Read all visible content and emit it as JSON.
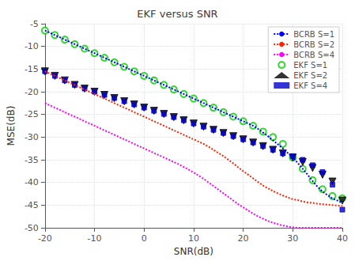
{
  "chart_data": {
    "type": "line",
    "title": "EKF versus SNR",
    "xlabel": "SNR(dB)",
    "ylabel": "MSE(dB)",
    "xlim": [
      -20,
      40
    ],
    "ylim": [
      -50,
      -5
    ],
    "xticks": [
      -20,
      -10,
      0,
      10,
      20,
      30,
      40
    ],
    "yticks": [
      -50,
      -45,
      -40,
      -35,
      -30,
      -25,
      -20,
      -15,
      -10,
      -5
    ],
    "grid": true,
    "legend": "upper right",
    "series": [
      {
        "name": "BCRB S=1",
        "type": "line",
        "line_style": "dotted",
        "color": "#0000ff",
        "x": [
          -20,
          -19,
          -18,
          -17,
          -16,
          -15,
          -14,
          -13,
          -12,
          -11,
          -10,
          -9,
          -8,
          -7,
          -6,
          -5,
          -4,
          -3,
          -2,
          -1,
          0,
          1,
          2,
          3,
          4,
          5,
          6,
          7,
          8,
          9,
          10,
          11,
          12,
          13,
          14,
          15,
          16,
          17,
          18,
          19,
          20,
          21,
          22,
          23,
          24,
          25,
          26,
          27,
          28,
          29,
          30,
          31,
          32,
          33,
          34,
          35,
          36,
          37,
          38,
          39,
          40
        ],
        "values": [
          -6.5,
          -7.0,
          -7.5,
          -8.0,
          -8.5,
          -9.0,
          -9.5,
          -10.0,
          -10.5,
          -11.0,
          -11.5,
          -12.0,
          -12.5,
          -13.0,
          -13.5,
          -14.0,
          -14.5,
          -15.0,
          -15.5,
          -16.0,
          -16.5,
          -17.0,
          -17.5,
          -18.0,
          -18.5,
          -19.0,
          -19.5,
          -20.0,
          -20.5,
          -21.0,
          -21.5,
          -22.0,
          -22.5,
          -23.0,
          -23.5,
          -24.0,
          -24.5,
          -25.0,
          -25.5,
          -26.0,
          -26.5,
          -27.0,
          -27.5,
          -28.2,
          -29.0,
          -29.8,
          -30.7,
          -31.6,
          -32.5,
          -33.5,
          -34.5,
          -35.7,
          -37.0,
          -38.3,
          -39.7,
          -41.0,
          -42.0,
          -42.8,
          -43.5,
          -44.0,
          -44.5
        ]
      },
      {
        "name": "BCRB S=2",
        "type": "line",
        "line_style": "dotted",
        "color": "#ff2200",
        "x": [
          -20,
          -19,
          -18,
          -17,
          -16,
          -15,
          -14,
          -13,
          -12,
          -11,
          -10,
          -9,
          -8,
          -7,
          -6,
          -5,
          -4,
          -3,
          -2,
          -1,
          0,
          1,
          2,
          3,
          4,
          5,
          6,
          7,
          8,
          9,
          10,
          11,
          12,
          13,
          14,
          15,
          16,
          17,
          18,
          19,
          20,
          21,
          22,
          23,
          24,
          25,
          26,
          27,
          28,
          29,
          30,
          31,
          32,
          33,
          34,
          35,
          36,
          37,
          38,
          39,
          40
        ],
        "values": [
          -15.5,
          -16.0,
          -16.5,
          -17.0,
          -17.5,
          -18.0,
          -18.5,
          -19.0,
          -19.5,
          -20.0,
          -20.5,
          -21.0,
          -21.5,
          -22.0,
          -22.5,
          -23.0,
          -23.5,
          -24.0,
          -24.5,
          -25.0,
          -25.5,
          -26.0,
          -26.5,
          -27.0,
          -27.5,
          -28.0,
          -28.5,
          -29.0,
          -29.5,
          -30.0,
          -30.5,
          -31.0,
          -31.5,
          -32.1,
          -32.8,
          -33.5,
          -34.2,
          -35.0,
          -35.8,
          -36.7,
          -37.5,
          -38.3,
          -39.1,
          -39.9,
          -40.7,
          -41.3,
          -41.9,
          -42.4,
          -42.9,
          -43.3,
          -43.7,
          -43.9,
          -44.2,
          -44.4,
          -44.5,
          -44.7,
          -44.8,
          -44.9,
          -45.0,
          -45.1,
          -45.2
        ]
      },
      {
        "name": "BCRB S=4",
        "type": "line",
        "line_style": "dotted",
        "color": "#ff00ff",
        "x": [
          -20,
          -19,
          -18,
          -17,
          -16,
          -15,
          -14,
          -13,
          -12,
          -11,
          -10,
          -9,
          -8,
          -7,
          -6,
          -5,
          -4,
          -3,
          -2,
          -1,
          0,
          1,
          2,
          3,
          4,
          5,
          6,
          7,
          8,
          9,
          10,
          11,
          12,
          13,
          14,
          15,
          16,
          17,
          18,
          19,
          20,
          21,
          22,
          23,
          24,
          25,
          26,
          27,
          28,
          29,
          30,
          31,
          32,
          33,
          34,
          35,
          36,
          37,
          38,
          39,
          40
        ],
        "values": [
          -22.5,
          -23.0,
          -23.5,
          -24.0,
          -24.5,
          -25.0,
          -25.5,
          -26.0,
          -26.5,
          -27.0,
          -27.5,
          -28.0,
          -28.5,
          -29.0,
          -29.5,
          -30.0,
          -30.5,
          -31.0,
          -31.5,
          -32.0,
          -32.5,
          -33.0,
          -33.5,
          -34.0,
          -34.5,
          -35.0,
          -35.5,
          -36.0,
          -36.6,
          -37.2,
          -37.8,
          -38.5,
          -39.2,
          -40.0,
          -40.8,
          -41.6,
          -42.4,
          -43.2,
          -44.0,
          -44.8,
          -45.5,
          -46.2,
          -46.9,
          -47.5,
          -48.0,
          -48.5,
          -48.9,
          -49.2,
          -49.5,
          -49.7,
          -49.9,
          -50.0,
          -50.0,
          -50.0,
          -50.0,
          -50.0,
          -50.0,
          -50.0,
          -50.0,
          -50.0,
          -50.0
        ]
      },
      {
        "name": "EKF S=1",
        "type": "scatter",
        "marker": "open_circle",
        "color": "#00cc00",
        "x": [
          -20,
          -18,
          -16,
          -14,
          -12,
          -10,
          -8,
          -6,
          -4,
          -2,
          0,
          2,
          4,
          6,
          8,
          10,
          12,
          14,
          16,
          18,
          20,
          22,
          24,
          26,
          28,
          30,
          32,
          34,
          36,
          38,
          40
        ],
        "values": [
          -6.5,
          -7.5,
          -8.5,
          -9.5,
          -10.5,
          -11.5,
          -12.5,
          -13.5,
          -14.5,
          -15.5,
          -16.5,
          -17.5,
          -18.5,
          -19.5,
          -20.5,
          -21.5,
          -22.5,
          -23.5,
          -24.5,
          -25.5,
          -26.5,
          -27.5,
          -28.8,
          -30.0,
          -31.5,
          -34.5,
          -37.0,
          -39.5,
          -41.5,
          -43.0,
          -43.5
        ]
      },
      {
        "name": "EKF S=2",
        "type": "scatter",
        "marker": "triangle_down",
        "color": "#000000",
        "x": [
          -20,
          -18,
          -16,
          -14,
          -12,
          -10,
          -8,
          -6,
          -4,
          -2,
          0,
          2,
          4,
          6,
          8,
          10,
          12,
          14,
          16,
          18,
          20,
          22,
          24,
          26,
          28,
          30,
          32,
          34,
          36,
          38,
          40
        ],
        "values": [
          -15.5,
          -16.5,
          -17.5,
          -18.5,
          -19.3,
          -20.0,
          -20.7,
          -21.4,
          -22.1,
          -22.8,
          -23.5,
          -24.2,
          -24.9,
          -25.6,
          -26.3,
          -27.0,
          -27.7,
          -28.4,
          -29.1,
          -29.8,
          -30.5,
          -31.2,
          -32.0,
          -32.8,
          -33.6,
          -34.5,
          -35.5,
          -36.8,
          -38.3,
          -39.8,
          -44.0
        ]
      },
      {
        "name": "EKF S=4",
        "type": "scatter",
        "marker": "square",
        "color": "#0000cc",
        "x": [
          -20,
          -18,
          -16,
          -14,
          -12,
          -10,
          -8,
          -6,
          -4,
          -2,
          0,
          2,
          4,
          6,
          8,
          10,
          12,
          14,
          16,
          18,
          20,
          22,
          24,
          26,
          28,
          30,
          32,
          34,
          36,
          38,
          40
        ],
        "values": [
          -15.5,
          -16.5,
          -17.5,
          -18.5,
          -19.3,
          -20.0,
          -20.7,
          -21.4,
          -22.1,
          -22.8,
          -23.5,
          -24.2,
          -24.9,
          -25.6,
          -26.3,
          -27.0,
          -27.7,
          -28.4,
          -29.1,
          -29.8,
          -30.5,
          -31.2,
          -32.0,
          -32.8,
          -33.6,
          -34.2,
          -35.0,
          -36.2,
          -37.7,
          -40.5,
          -46.0
        ]
      }
    ]
  }
}
